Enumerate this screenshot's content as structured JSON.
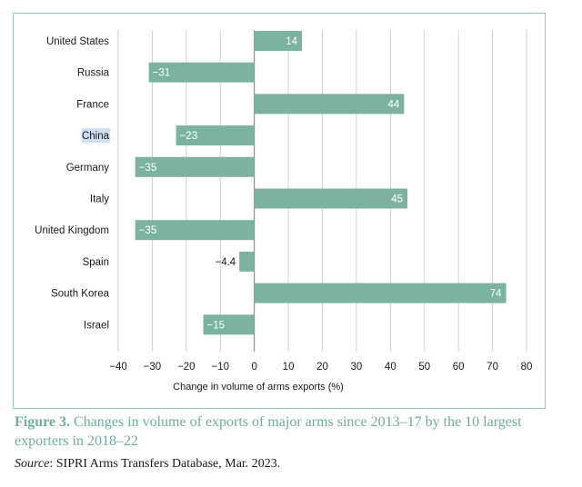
{
  "chart_data": {
    "type": "bar",
    "orientation": "horizontal",
    "categories": [
      "United States",
      "Russia",
      "France",
      "China",
      "Germany",
      "Italy",
      "United Kingdom",
      "Spain",
      "South Korea",
      "Israel"
    ],
    "values": [
      14,
      -31,
      44,
      -23,
      -35,
      45,
      -35,
      -4.4,
      74,
      -15
    ],
    "value_labels": [
      "14",
      "−31",
      "44",
      "−23",
      "−35",
      "45",
      "−35",
      "−4.4",
      "74",
      "−15"
    ],
    "xlabel": "Change in volume of arms exports (%)",
    "xlim": [
      -40,
      80
    ],
    "xticks": [
      -40,
      -30,
      -20,
      -10,
      0,
      10,
      20,
      30,
      40,
      50,
      60,
      70,
      80
    ],
    "xtick_labels": [
      "−40",
      "−30",
      "−20",
      "−10",
      "0",
      "10",
      "20",
      "30",
      "40",
      "50",
      "60",
      "70",
      "80"
    ],
    "grid": true,
    "bar_color": "#7bb3a0",
    "gridline_color": "#c8c8c8"
  },
  "caption": {
    "figure_number": "Figure 3.",
    "text": "Changes in volume of exports of major arms since 2013–17 by the 10 largest exporters in 2018–22"
  },
  "source": {
    "label": "Source",
    "text": ": SIPRI Arms Transfers Database, Mar. 2023."
  },
  "colors": {
    "frame_border": "#9fc9bd",
    "caption": "#6fae9b",
    "highlight": "#cfe0f3"
  }
}
